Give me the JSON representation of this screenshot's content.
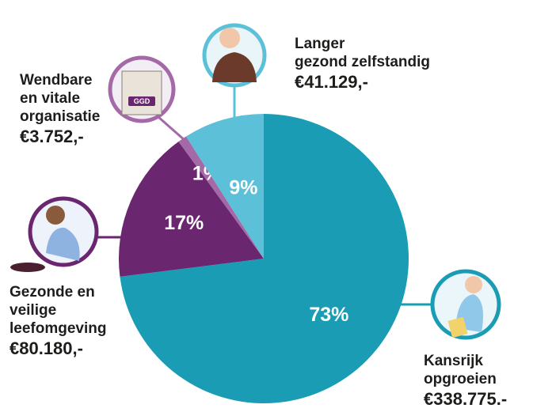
{
  "chart_data": {
    "type": "pie",
    "categories": [
      "Kansrijk\nopgroeien",
      "Gezonde en\nveilige\nleefomgeving",
      "Wendbare\nen vitale\norganisatie",
      "Langer\ngezond zelfstandig"
    ],
    "values": [
      73,
      17,
      1,
      9
    ],
    "value_labels": [
      "73%",
      "17%",
      "1%",
      "9%"
    ],
    "amounts": [
      "€338.775.-",
      "€80.180,-",
      "€3.752,-",
      "€41.129,-"
    ],
    "colors": [
      "#1a9cb5",
      "#6b2670",
      "#a46aa8",
      "#5bc0d8"
    ],
    "icon_text": "GGD"
  }
}
